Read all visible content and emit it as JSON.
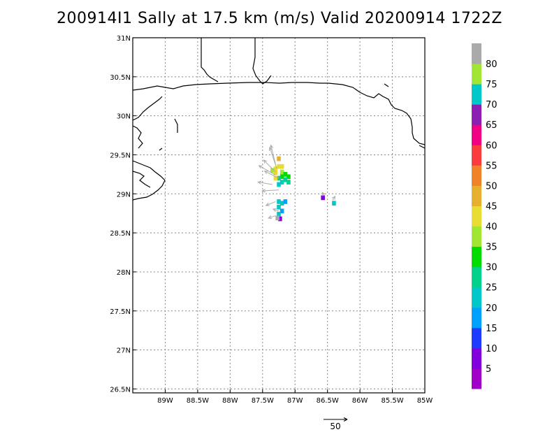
{
  "title": "200914I1 Sally at 17.5 km (m/s) Valid 20200914  1722Z",
  "map": {
    "lon_min": -89.5,
    "lon_max": -85.0,
    "lat_min": 26.45,
    "lat_max": 31.0,
    "lon_ticks": [
      {
        "v": -89.0,
        "label": "89W"
      },
      {
        "v": -88.5,
        "label": "88.5W"
      },
      {
        "v": -88.0,
        "label": "88W"
      },
      {
        "v": -87.5,
        "label": "87.5W"
      },
      {
        "v": -87.0,
        "label": "87W"
      },
      {
        "v": -86.5,
        "label": "86.5W"
      },
      {
        "v": -86.0,
        "label": "86W"
      },
      {
        "v": -85.5,
        "label": "85.5W"
      },
      {
        "v": -85.0,
        "label": "85W"
      }
    ],
    "lat_ticks": [
      {
        "v": 31.0,
        "label": "31N"
      },
      {
        "v": 30.5,
        "label": "30.5N"
      },
      {
        "v": 30.0,
        "label": "30N"
      },
      {
        "v": 29.5,
        "label": "29.5N"
      },
      {
        "v": 29.0,
        "label": "29N"
      },
      {
        "v": 28.5,
        "label": "28.5N"
      },
      {
        "v": 28.0,
        "label": "28N"
      },
      {
        "v": 27.5,
        "label": "27.5N"
      },
      {
        "v": 27.0,
        "label": "27N"
      },
      {
        "v": 26.5,
        "label": "26.5N"
      }
    ],
    "grid": true
  },
  "colorbar": {
    "colors": [
      "#a000c8",
      "#8200dc",
      "#1e3cff",
      "#00a0ff",
      "#00c8c8",
      "#00d28c",
      "#00dc00",
      "#a0e632",
      "#e6dc32",
      "#e6af2d",
      "#f08228",
      "#fa3c3c",
      "#f00082",
      "#8c1eb4",
      "#00c8c8",
      "#a0e632",
      "#aaaaaa"
    ],
    "labels": [
      "5",
      "10",
      "15",
      "20",
      "25",
      "30",
      "35",
      "40",
      "45",
      "50",
      "55",
      "60",
      "65",
      "70",
      "75",
      "80"
    ]
  },
  "reference_vector": {
    "label": "50",
    "value": 50
  },
  "wind_field": [
    {
      "lon": -87.25,
      "lat": 29.45,
      "c": 9
    },
    {
      "lon": -87.2,
      "lat": 29.35,
      "c": 8
    },
    {
      "lon": -87.25,
      "lat": 29.35,
      "c": 8
    },
    {
      "lon": -87.3,
      "lat": 29.32,
      "c": 8
    },
    {
      "lon": -87.35,
      "lat": 29.3,
      "c": 7
    },
    {
      "lon": -87.3,
      "lat": 29.27,
      "c": 8
    },
    {
      "lon": -87.2,
      "lat": 29.28,
      "c": 7
    },
    {
      "lon": -87.15,
      "lat": 29.25,
      "c": 6
    },
    {
      "lon": -87.1,
      "lat": 29.22,
      "c": 6
    },
    {
      "lon": -87.2,
      "lat": 29.22,
      "c": 6
    },
    {
      "lon": -87.25,
      "lat": 29.2,
      "c": 5
    },
    {
      "lon": -87.3,
      "lat": 29.2,
      "c": 8
    },
    {
      "lon": -87.15,
      "lat": 29.18,
      "c": 5
    },
    {
      "lon": -87.2,
      "lat": 29.15,
      "c": 4
    },
    {
      "lon": -87.25,
      "lat": 29.12,
      "c": 4
    },
    {
      "lon": -87.1,
      "lat": 29.15,
      "c": 5
    },
    {
      "lon": -87.25,
      "lat": 28.9,
      "c": 4
    },
    {
      "lon": -87.2,
      "lat": 28.88,
      "c": 4
    },
    {
      "lon": -87.15,
      "lat": 28.9,
      "c": 3
    },
    {
      "lon": -87.25,
      "lat": 28.83,
      "c": 4
    },
    {
      "lon": -87.2,
      "lat": 28.78,
      "c": 3
    },
    {
      "lon": -87.25,
      "lat": 28.74,
      "c": 4
    },
    {
      "lon": -87.23,
      "lat": 28.68,
      "c": 1
    },
    {
      "lon": -87.27,
      "lat": 28.69,
      "c": 16
    },
    {
      "lon": -86.4,
      "lat": 28.88,
      "c": 4
    },
    {
      "lon": -86.57,
      "lat": 28.95,
      "c": 1
    }
  ],
  "wind_vectors": [
    {
      "lon": -87.28,
      "lat": 29.32,
      "u": -15,
      "v": 45
    },
    {
      "lon": -87.3,
      "lat": 29.38,
      "u": -10,
      "v": 40
    },
    {
      "lon": -87.3,
      "lat": 29.28,
      "u": -25,
      "v": 25
    },
    {
      "lon": -87.25,
      "lat": 29.2,
      "u": -30,
      "v": 15
    },
    {
      "lon": -87.3,
      "lat": 29.24,
      "u": -35,
      "v": 20
    },
    {
      "lon": -87.35,
      "lat": 29.12,
      "u": -30,
      "v": 5
    },
    {
      "lon": -87.25,
      "lat": 29.05,
      "u": -35,
      "v": -2
    },
    {
      "lon": -87.3,
      "lat": 28.9,
      "u": -20,
      "v": -8
    },
    {
      "lon": -87.25,
      "lat": 28.78,
      "u": -12,
      "v": 4
    },
    {
      "lon": -87.3,
      "lat": 28.72,
      "u": -15,
      "v": -5
    },
    {
      "lon": -86.42,
      "lat": 28.92,
      "u": 5,
      "v": 8
    },
    {
      "lon": -86.55,
      "lat": 28.98,
      "u": -4,
      "v": 6
    }
  ]
}
